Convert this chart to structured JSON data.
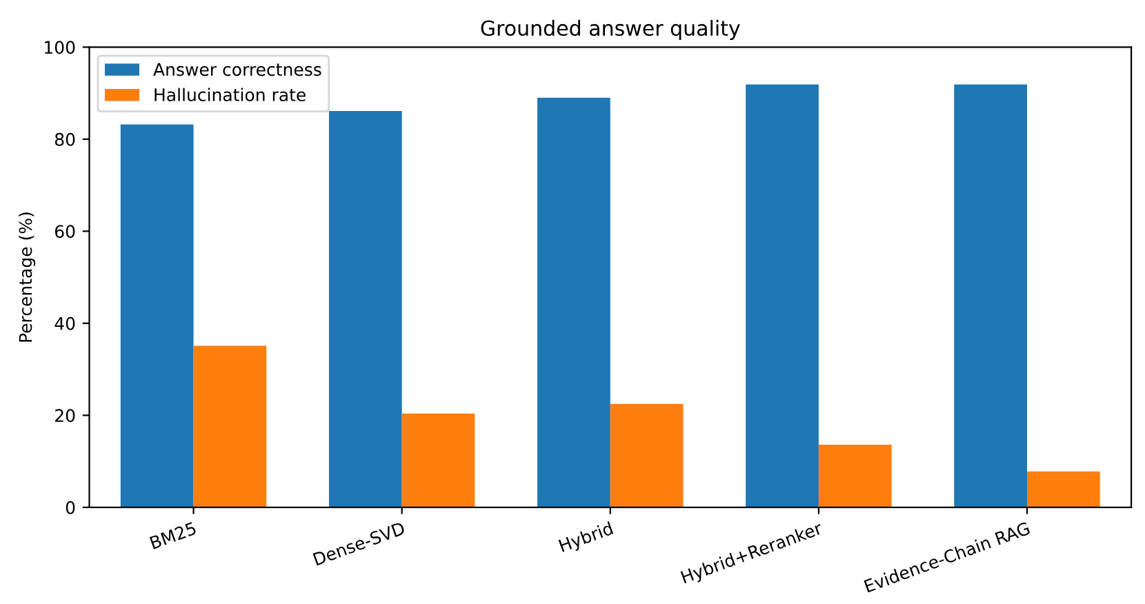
{
  "chart_data": {
    "type": "bar",
    "title": "Grounded answer quality",
    "ylabel": "Percentage (%)",
    "categories": [
      "BM25",
      "Dense-SVD",
      "Hybrid",
      "Hybrid+Reranker",
      "Evidence-Chain RAG"
    ],
    "series": [
      {
        "name": "Answer correctness",
        "color": "#1f77b4",
        "values": [
          83.2,
          86.1,
          89.0,
          91.9,
          91.9
        ]
      },
      {
        "name": "Hallucination rate",
        "color": "#ff7f0e",
        "values": [
          35.1,
          20.4,
          22.5,
          13.6,
          7.8
        ]
      }
    ],
    "ylim": [
      0,
      100
    ],
    "yticks": [
      0,
      20,
      40,
      60,
      80,
      100
    ],
    "legend": "upper left",
    "grid": false
  }
}
